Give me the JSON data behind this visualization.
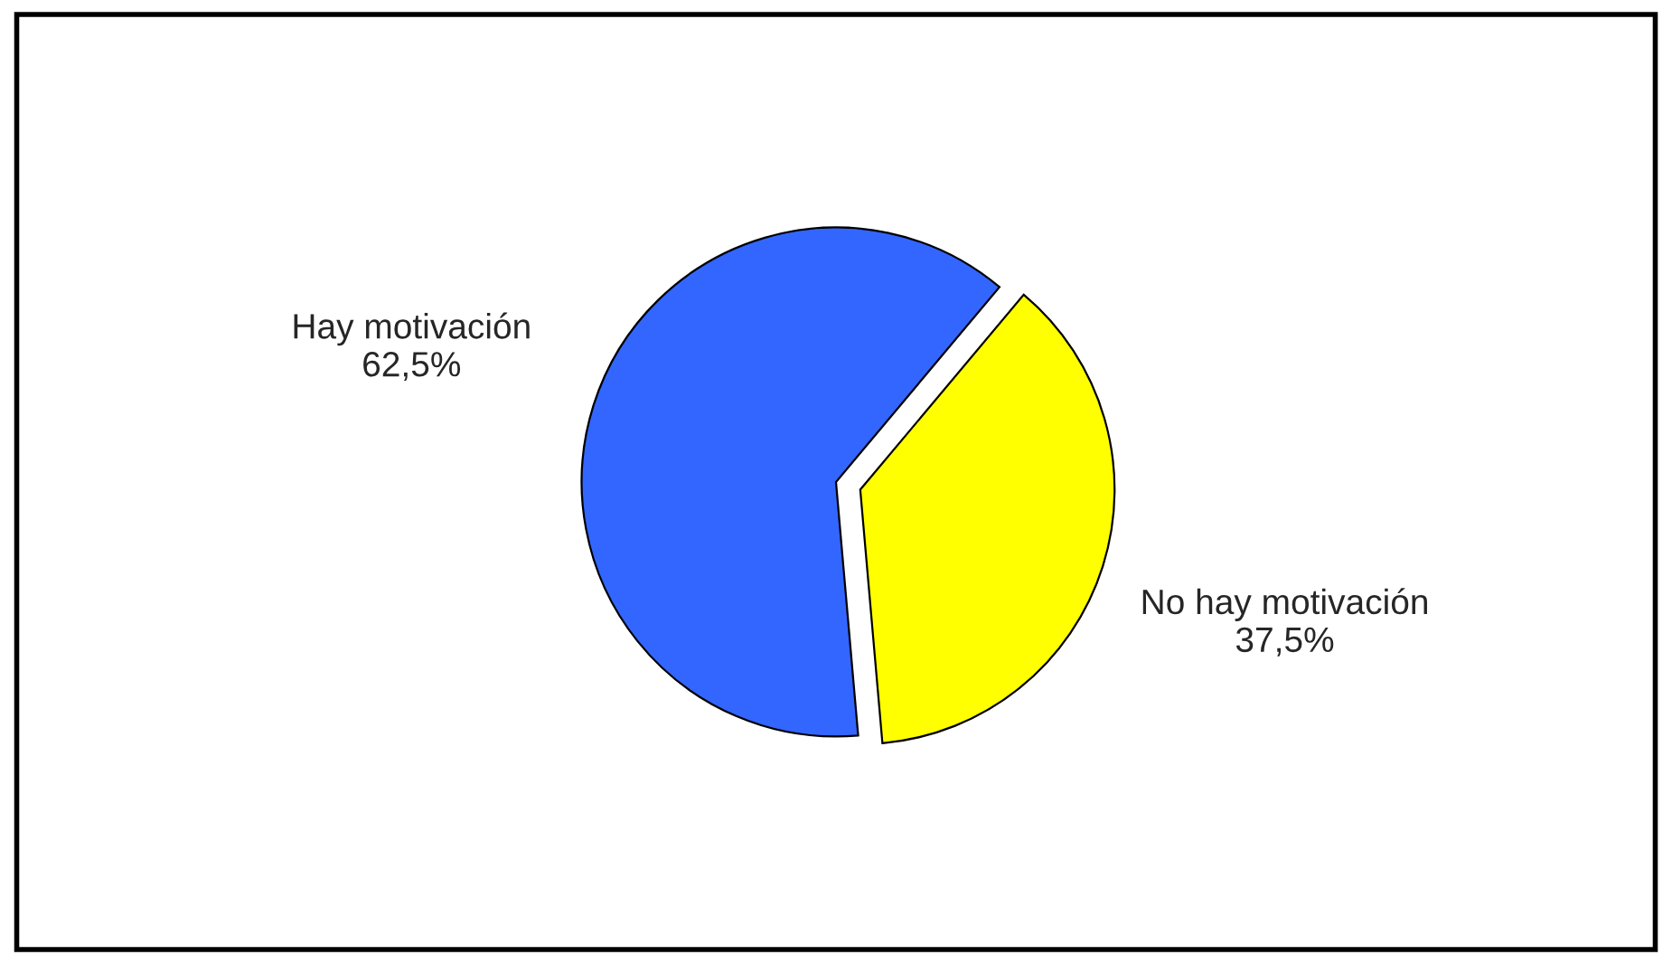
{
  "chart_data": {
    "type": "pie",
    "categories": [
      "Hay motivación",
      "No hay motivación"
    ],
    "values": [
      62.5,
      37.5
    ],
    "value_labels": [
      "62,5%",
      "37,5%"
    ],
    "colors": [
      "#3366ff",
      "#ffff00"
    ],
    "legend": false
  }
}
